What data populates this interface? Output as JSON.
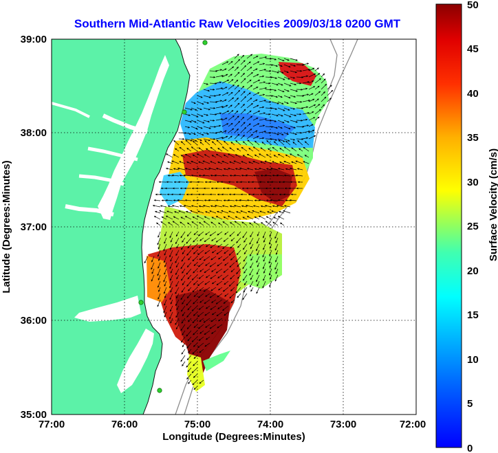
{
  "title": "Southern Mid-Atlantic Raw Velocities 2009/03/18 0200 GMT",
  "xlabel": "Longitude (Degrees:Minutes)",
  "ylabel": "Latitude (Degrees:Minutes)",
  "colorbar_label": "Surface Velocity (cm/s)",
  "x_ticks": [
    "77:00",
    "76:00",
    "75:00",
    "74:00",
    "73:00",
    "72:00"
  ],
  "y_ticks": [
    "39:00",
    "38:00",
    "37:00",
    "36:00",
    "35:00"
  ],
  "colorbar_ticks": [
    "50",
    "45",
    "40",
    "35",
    "30",
    "25",
    "20",
    "15",
    "10",
    "5",
    "0"
  ],
  "colors": {
    "land": "#5cf2a8",
    "ocean": "#ffffff",
    "title": "#0000ff",
    "grid": "#000000",
    "bathymetry": "#8c8c8c",
    "station": "#2fd12f"
  },
  "chart_data": {
    "type": "heatmap",
    "title": "Southern Mid-Atlantic Raw Velocities 2009/03/18 0200 GMT",
    "xlabel": "Longitude (Degrees:Minutes)",
    "ylabel": "Latitude (Degrees:Minutes)",
    "xlim_deg_west": [
      77,
      72
    ],
    "ylim_deg_north": [
      35,
      39
    ],
    "colorbar": {
      "label": "Surface Velocity (cm/s)",
      "range": [
        0,
        50
      ],
      "colormap": "jet"
    },
    "grid": true,
    "regions": [
      {
        "lon": 74.0,
        "lat": 38.2,
        "speed": 8
      },
      {
        "lon": 74.3,
        "lat": 38.55,
        "speed": 20
      },
      {
        "lon": 73.8,
        "lat": 38.7,
        "speed": 45
      },
      {
        "lon": 74.9,
        "lat": 37.7,
        "speed": 42
      },
      {
        "lon": 74.1,
        "lat": 37.5,
        "speed": 48
      },
      {
        "lon": 75.4,
        "lat": 37.3,
        "speed": 12
      },
      {
        "lon": 74.8,
        "lat": 37.1,
        "speed": 28
      },
      {
        "lon": 74.9,
        "lat": 36.3,
        "speed": 46
      },
      {
        "lon": 74.3,
        "lat": 36.6,
        "speed": 22
      },
      {
        "lon": 75.0,
        "lat": 35.7,
        "speed": 48
      }
    ]
  },
  "stations": [
    {
      "lon": 74.9,
      "lat": 39.0
    },
    {
      "lon": 75.1,
      "lat": 38.2
    },
    {
      "lon": 75.7,
      "lat": 36.2
    },
    {
      "lon": 75.5,
      "lat": 35.3
    }
  ]
}
